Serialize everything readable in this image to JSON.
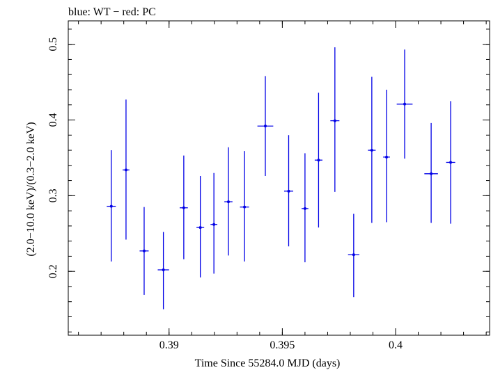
{
  "chart_data": {
    "type": "scatter",
    "title": "blue: WT − red: PC",
    "xlabel": "Time Since 55284.0 MJD (days)",
    "ylabel": "(2.0−10.0 keV)/(0.3−2.0 keV)",
    "xlim": [
      0.38555,
      0.40415
    ],
    "ylim": [
      0.11565,
      0.53095
    ],
    "xticks": [
      0.39,
      0.395,
      0.4
    ],
    "xtick_labels": [
      "0.39",
      "0.395",
      "0.4"
    ],
    "xminor": 0.001,
    "yticks": [
      0.2,
      0.3,
      0.4,
      0.5
    ],
    "ytick_labels": [
      "0.2",
      "0.3",
      "0.4",
      "0.5"
    ],
    "yminor": 0.02,
    "grid": false,
    "series": [
      {
        "color": "#0000e6",
        "x": [
          0.38745,
          0.3881,
          0.3889,
          0.38975,
          0.39065,
          0.39138,
          0.39198,
          0.39262,
          0.39333,
          0.39425,
          0.39528,
          0.396,
          0.3966,
          0.39732,
          0.39815,
          0.39895,
          0.3996,
          0.4004,
          0.40157,
          0.40243
        ],
        "y": [
          0.286,
          0.334,
          0.227,
          0.202,
          0.284,
          0.258,
          0.262,
          0.292,
          0.285,
          0.392,
          0.306,
          0.283,
          0.347,
          0.399,
          0.222,
          0.36,
          0.351,
          0.421,
          0.329,
          0.344
        ],
        "xerr": [
          0.0002,
          0.00015,
          0.0002,
          0.00025,
          0.00018,
          0.00017,
          0.00015,
          0.00018,
          0.0002,
          0.00035,
          0.0002,
          0.00015,
          0.00017,
          0.0002,
          0.00025,
          0.00017,
          0.00015,
          0.00035,
          0.0003,
          0.0002
        ],
        "yerr_low": [
          0.073,
          0.092,
          0.058,
          0.052,
          0.068,
          0.066,
          0.065,
          0.071,
          0.072,
          0.066,
          0.073,
          0.071,
          0.089,
          0.094,
          0.056,
          0.096,
          0.086,
          0.072,
          0.065,
          0.081
        ],
        "yerr_high": [
          0.074,
          0.093,
          0.058,
          0.05,
          0.069,
          0.068,
          0.068,
          0.072,
          0.074,
          0.066,
          0.074,
          0.073,
          0.089,
          0.097,
          0.054,
          0.097,
          0.089,
          0.072,
          0.067,
          0.081
        ]
      }
    ]
  }
}
